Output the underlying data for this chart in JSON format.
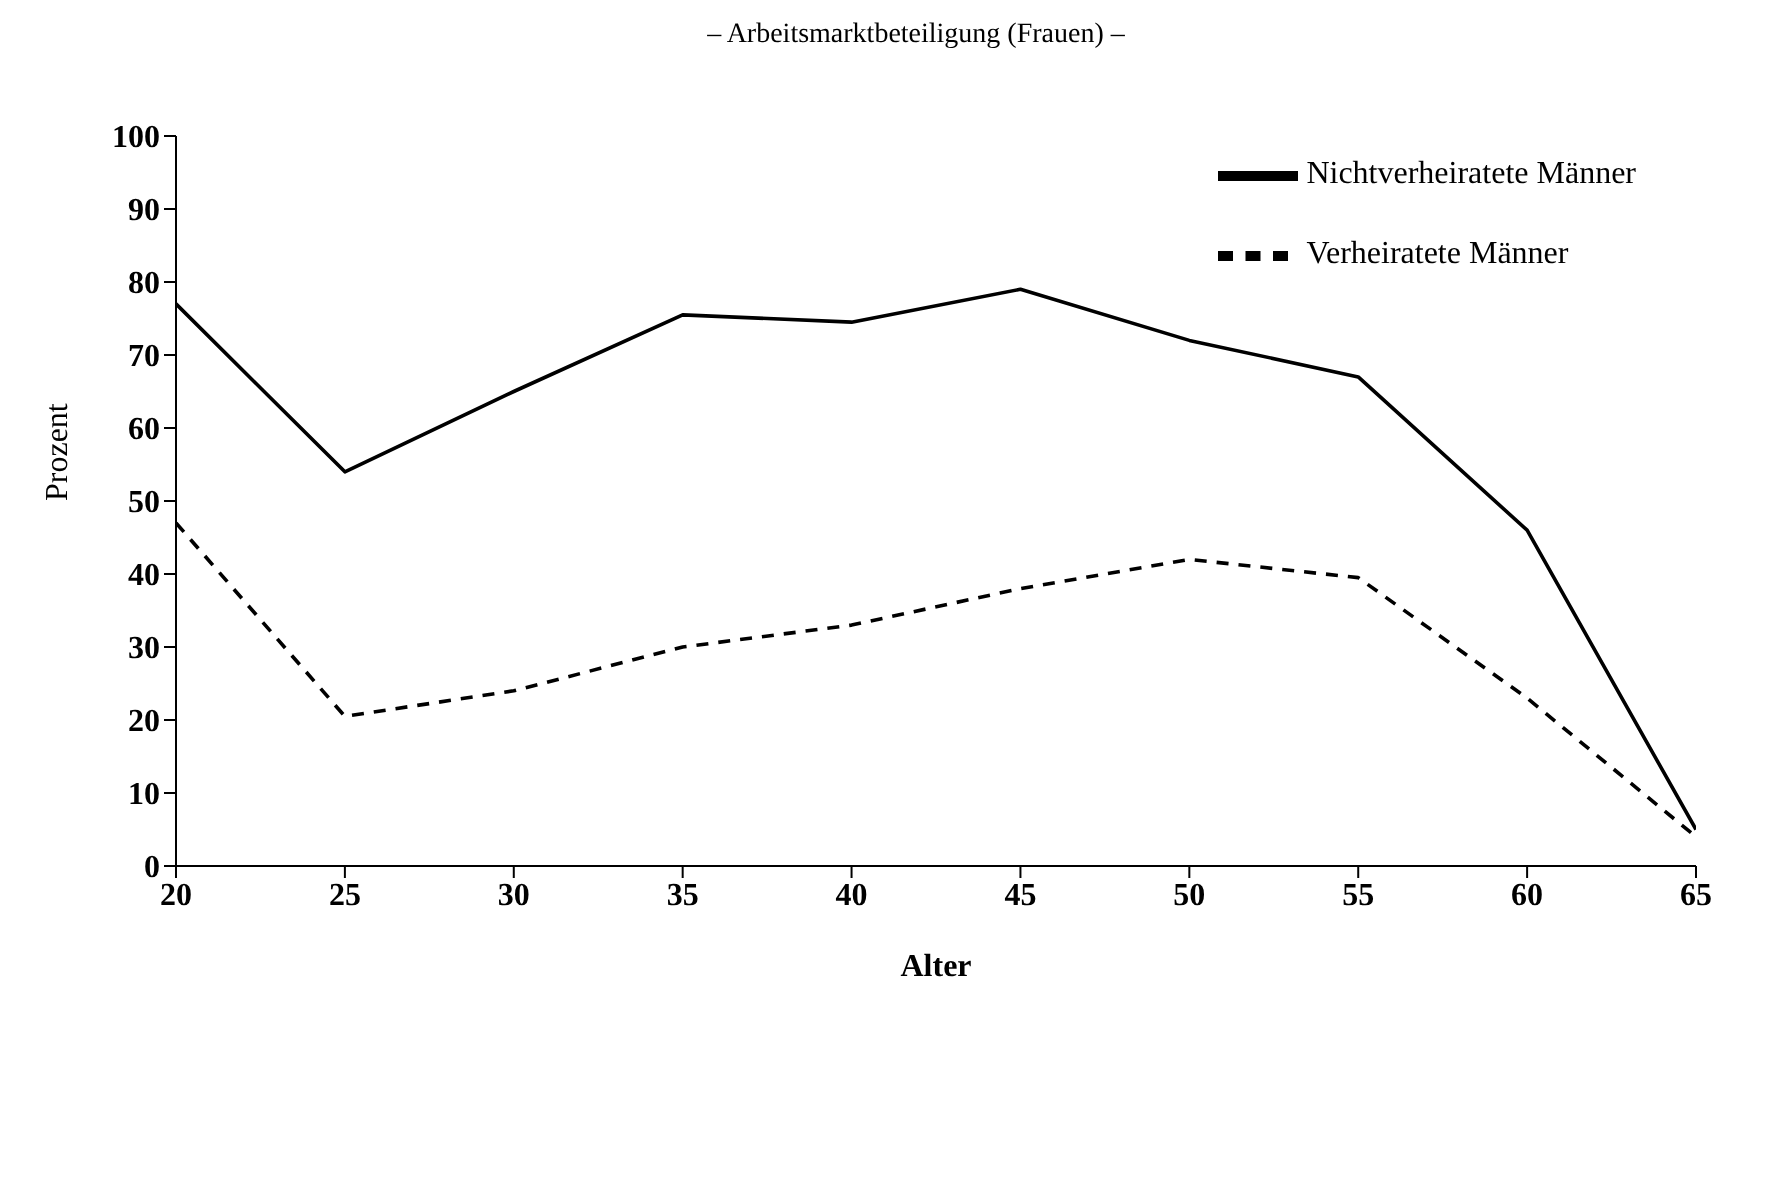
{
  "chart_data": {
    "type": "line",
    "title": "– Arbeitsmarktbeteiligung (Frauen) –",
    "xlabel": "Alter",
    "ylabel": "Prozent",
    "x": [
      20,
      25,
      30,
      35,
      40,
      45,
      50,
      55,
      60,
      65
    ],
    "series": [
      {
        "name": "Nichtverheiratete Männer",
        "color": "#000000",
        "line_style": "solid",
        "values": [
          77,
          54,
          65,
          75.5,
          74.5,
          79,
          72,
          67,
          46,
          5
        ]
      },
      {
        "name": "Verheiratete Männer",
        "color": "#000000",
        "line_style": "dashed",
        "values": [
          47,
          20.5,
          24,
          30,
          33,
          38,
          42,
          39.5,
          23,
          4
        ]
      }
    ],
    "xlim": [
      20,
      65
    ],
    "xticks": [
      20,
      25,
      30,
      35,
      40,
      45,
      50,
      55,
      60,
      65
    ],
    "ylim": [
      0,
      100
    ],
    "yticks": [
      0,
      10,
      20,
      30,
      40,
      50,
      60,
      70,
      80,
      90,
      100
    ],
    "grid": false,
    "legend": "top right",
    "marker": "none"
  }
}
